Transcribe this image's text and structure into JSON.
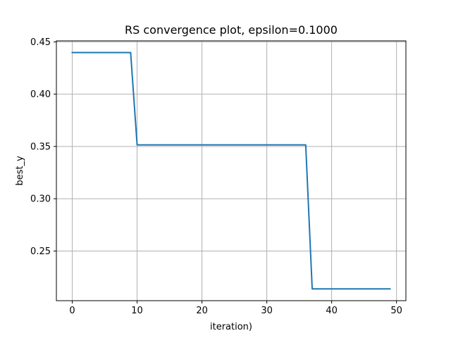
{
  "chart_data": {
    "type": "line",
    "title": "RS convergence plot, epsilon=0.1000",
    "xlabel": "iteration)",
    "ylabel": "best_y",
    "xlim": [
      -2.45,
      51.45
    ],
    "ylim": [
      0.2025,
      0.451
    ],
    "xticks": [
      0,
      10,
      20,
      30,
      40,
      50
    ],
    "yticks": [
      0.25,
      0.3,
      0.35,
      0.4,
      0.45
    ],
    "xtick_labels": [
      "0",
      "10",
      "20",
      "30",
      "40",
      "50"
    ],
    "ytick_labels": [
      "0.25",
      "0.30",
      "0.35",
      "0.40",
      "0.45"
    ],
    "grid": true,
    "series": [
      {
        "color": "#1f77b4",
        "x": [
          0,
          9,
          10,
          36,
          37,
          49
        ],
        "y": [
          0.4398,
          0.4398,
          0.3515,
          0.3515,
          0.2138,
          0.2138
        ]
      }
    ]
  }
}
